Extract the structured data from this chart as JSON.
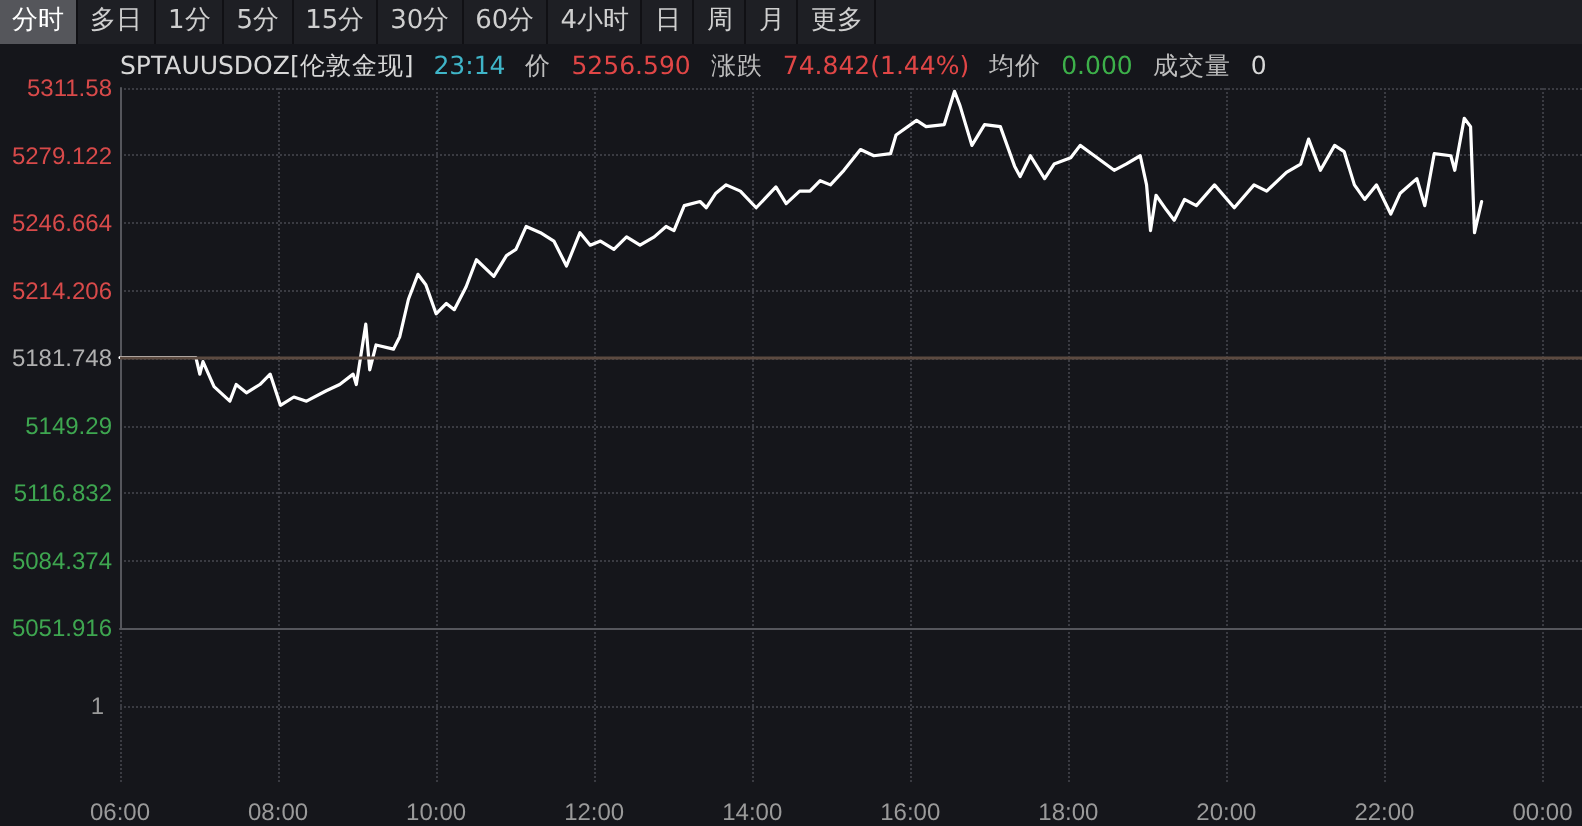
{
  "chart_data": [
    {
      "type": "line",
      "title": "SPTAUUSDOZ[伦敦金现]",
      "subtitle": "23:14",
      "annotations": [
        "分时",
        "多日",
        "1分",
        "5分",
        "15分",
        "30分",
        "60分",
        "4小时",
        "日",
        "周",
        "月",
        "更多",
        "价",
        "5256.590",
        "涨跌",
        "74.842(1.44%)",
        "均价",
        "0.000",
        "成交量",
        "0",
        "1"
      ],
      "series": [
        {
          "color": "#ffffff",
          "x": [
            6.0,
            6.96,
            7.01,
            7.05,
            7.19,
            7.39,
            7.47,
            7.6,
            7.77,
            7.9,
            8.03,
            8.2,
            8.36,
            8.61,
            8.78,
            8.95,
            8.99,
            9.11,
            9.16,
            9.24,
            9.46,
            9.54,
            9.65,
            9.77,
            9.87,
            10.0,
            10.13,
            10.23,
            10.38,
            10.51,
            10.73,
            10.89,
            11.01,
            11.14,
            11.32,
            11.49,
            11.65,
            11.82,
            11.95,
            12.08,
            12.25,
            12.41,
            12.58,
            12.76,
            12.91,
            13.01,
            13.14,
            13.34,
            13.42,
            13.54,
            13.67,
            13.85,
            14.05,
            14.3,
            14.43,
            14.6,
            14.73,
            14.86,
            14.99,
            15.16,
            15.37,
            15.54,
            15.75,
            15.82,
            16.08,
            16.2,
            16.43,
            16.56,
            16.63,
            16.78,
            16.94,
            17.14,
            17.32,
            17.39,
            17.52,
            17.7,
            17.82,
            18.03,
            18.15,
            18.33,
            18.58,
            18.73,
            18.91,
            18.99,
            19.04,
            19.11,
            19.24,
            19.34,
            19.47,
            19.62,
            19.85,
            20.1,
            20.35,
            20.51,
            20.76,
            20.94,
            21.04,
            21.19,
            21.37,
            21.49,
            21.62,
            21.75,
            21.9,
            22.08,
            22.2,
            22.41,
            22.51,
            22.63,
            22.84,
            22.89,
            23.01,
            23.09,
            23.14,
            23.23
          ],
          "values": [
            5182,
            5182,
            5174,
            5180,
            5168,
            5161,
            5169,
            5165,
            5169,
            5174,
            5159,
            5163,
            5161,
            5166,
            5169,
            5174,
            5169,
            5198,
            5176,
            5188,
            5186,
            5192,
            5210,
            5222,
            5217,
            5203,
            5208,
            5205,
            5216,
            5229,
            5221,
            5231,
            5234,
            5245,
            5242,
            5238,
            5226,
            5242,
            5236,
            5238,
            5234,
            5240,
            5236,
            5240,
            5245,
            5243,
            5255,
            5257,
            5254,
            5261,
            5265,
            5262,
            5254,
            5264,
            5256,
            5262,
            5262,
            5267,
            5265,
            5272,
            5282,
            5279,
            5280,
            5289,
            5296,
            5293,
            5294,
            5310,
            5303,
            5284,
            5294,
            5293,
            5274,
            5269,
            5279,
            5268,
            5275,
            5278,
            5284,
            5279,
            5272,
            5275,
            5279,
            5265,
            5243,
            5260,
            5253,
            5248,
            5258,
            5255,
            5265,
            5254,
            5265,
            5262,
            5271,
            5275,
            5287,
            5272,
            5284,
            5281,
            5265,
            5258,
            5265,
            5251,
            5261,
            5268,
            5255,
            5280,
            5279,
            5272,
            5297,
            5293,
            5242,
            5257
          ]
        }
      ],
      "xlim": [
        6,
        24.5
      ],
      "xticks": [
        {
          "value": 6,
          "label": "06:00"
        },
        {
          "value": 8,
          "label": "08:00"
        },
        {
          "value": 10,
          "label": "10:00"
        },
        {
          "value": 12,
          "label": "12:00"
        },
        {
          "value": 14,
          "label": "14:00"
        },
        {
          "value": 16,
          "label": "16:00"
        },
        {
          "value": 18,
          "label": "18:00"
        },
        {
          "value": 20,
          "label": "20:00"
        },
        {
          "value": 22,
          "label": "22:00"
        },
        {
          "value": 24,
          "label": "00:00"
        }
      ],
      "ylim": [
        5051.916,
        5311.58
      ],
      "yticks": [
        5051.916,
        5084.374,
        5116.832,
        5149.29,
        5181.748,
        5214.206,
        5246.664,
        5279.122,
        5311.58
      ],
      "ref_lines": [
        {
          "axis": "y",
          "value": 5181.748,
          "color": "#5c4a40"
        }
      ],
      "grid": true,
      "marker": "none"
    }
  ]
}
